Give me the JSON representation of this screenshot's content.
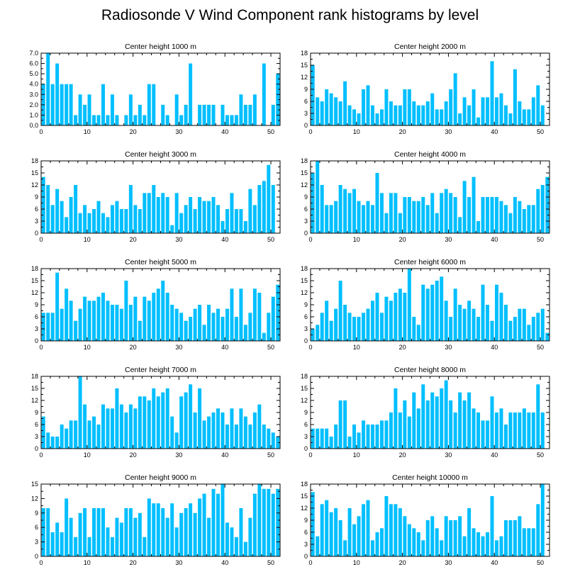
{
  "chart_data": {
    "type": "bar",
    "title": "Radiosonde V Wind Component rank histograms by level",
    "bar_color": "#00bfff",
    "x": [
      0,
      1,
      2,
      3,
      4,
      5,
      6,
      7,
      8,
      9,
      10,
      11,
      12,
      13,
      14,
      15,
      16,
      17,
      18,
      19,
      20,
      21,
      22,
      23,
      24,
      25,
      26,
      27,
      28,
      29,
      30,
      31,
      32,
      33,
      34,
      35,
      36,
      37,
      38,
      39,
      40,
      41,
      42,
      43,
      44,
      45,
      46,
      47,
      48,
      49,
      50,
      51
    ],
    "xlim": [
      0,
      52
    ],
    "xticks": [
      "0",
      "10",
      "20",
      "30",
      "40",
      "50"
    ],
    "panels": [
      {
        "title": "Center height 1000 m",
        "ylim": [
          0,
          7
        ],
        "yticks": [
          "0.0",
          "1.0",
          "2.0",
          "3.0",
          "4.0",
          "5.0",
          "6.0",
          "7.0"
        ],
        "values": [
          4,
          7,
          4,
          6,
          4,
          4,
          4,
          1,
          3,
          2,
          3,
          1,
          1,
          4,
          1,
          3,
          1,
          0,
          1,
          3,
          1,
          2,
          1,
          4,
          4,
          0,
          2,
          1,
          0,
          3,
          1,
          2,
          6,
          0,
          2,
          2,
          2,
          2,
          0,
          2,
          1,
          1,
          1,
          3,
          2,
          2,
          3,
          0,
          6,
          0,
          2,
          5
        ]
      },
      {
        "title": "Center height 2000 m",
        "ylim": [
          0,
          18
        ],
        "yticks": [
          "0",
          "3",
          "6",
          "9",
          "12",
          "15",
          "18"
        ],
        "values": [
          15,
          7,
          6,
          9,
          8,
          7,
          6,
          11,
          5,
          4,
          3,
          9,
          10,
          5,
          3,
          4,
          9,
          6,
          5,
          5,
          9,
          9,
          6,
          5,
          5,
          6,
          8,
          4,
          4,
          6,
          9,
          13,
          3,
          7,
          5,
          9,
          2,
          7,
          7,
          16,
          7,
          8,
          5,
          3,
          14,
          6,
          4,
          4,
          7,
          10,
          5,
          0
        ]
      },
      {
        "title": "Center height 3000 m",
        "ylim": [
          0,
          18
        ],
        "yticks": [
          "0",
          "3",
          "6",
          "9",
          "12",
          "15",
          "18"
        ],
        "values": [
          14,
          12,
          7,
          11,
          8,
          4,
          9,
          12,
          5,
          7,
          5,
          6,
          8,
          5,
          4,
          7,
          8,
          6,
          6,
          12,
          7,
          6,
          10,
          10,
          12,
          9,
          10,
          9,
          2,
          10,
          5,
          7,
          9,
          6,
          9,
          8,
          8,
          9,
          7,
          3,
          6,
          10,
          6,
          6,
          3,
          11,
          7,
          12,
          13,
          17,
          12,
          0
        ]
      },
      {
        "title": "Center height 4000 m",
        "ylim": [
          0,
          18
        ],
        "yticks": [
          "0",
          "3",
          "6",
          "9",
          "12",
          "15",
          "18"
        ],
        "values": [
          15,
          18,
          12,
          7,
          7,
          8,
          12,
          11,
          10,
          11,
          8,
          7,
          8,
          7,
          15,
          10,
          5,
          10,
          10,
          5,
          9,
          9,
          8,
          8,
          9,
          7,
          10,
          5,
          10,
          11,
          10,
          9,
          4,
          13,
          9,
          14,
          3,
          9,
          9,
          9,
          9,
          8,
          7,
          5,
          9,
          8,
          6,
          7,
          7,
          11,
          12,
          14
        ]
      },
      {
        "title": "Center height 5000 m",
        "ylim": [
          0,
          18
        ],
        "yticks": [
          "0",
          "3",
          "6",
          "9",
          "12",
          "15",
          "18"
        ],
        "values": [
          7,
          7,
          7,
          17,
          8,
          13,
          10,
          5,
          8,
          11,
          10,
          10,
          11,
          12,
          10,
          9,
          9,
          8,
          15,
          9,
          11,
          5,
          11,
          10,
          12,
          13,
          15,
          12,
          9,
          8,
          7,
          5,
          6,
          8,
          9,
          4,
          9,
          7,
          8,
          6,
          8,
          13,
          6,
          13,
          4,
          7,
          13,
          12,
          2,
          7,
          11,
          14
        ]
      },
      {
        "title": "Center height 6000 m",
        "ylim": [
          0,
          18
        ],
        "yticks": [
          "0",
          "3",
          "6",
          "9",
          "12",
          "15",
          "18"
        ],
        "values": [
          3,
          4,
          7,
          10,
          5,
          8,
          15,
          9,
          7,
          6,
          6,
          7,
          8,
          10,
          12,
          7,
          11,
          10,
          12,
          13,
          12,
          18,
          6,
          4,
          14,
          13,
          14,
          15,
          16,
          10,
          6,
          13,
          9,
          8,
          10,
          8,
          6,
          14,
          9,
          5,
          14,
          12,
          9,
          5,
          6,
          8,
          8,
          4,
          6,
          7,
          8,
          2
        ]
      },
      {
        "title": "Center height 7000 m",
        "ylim": [
          0,
          18
        ],
        "yticks": [
          "0",
          "3",
          "6",
          "9",
          "12",
          "15",
          "18"
        ],
        "values": [
          8,
          4,
          3,
          3,
          6,
          5,
          7,
          7,
          18,
          11,
          7,
          8,
          6,
          11,
          10,
          10,
          15,
          11,
          9,
          11,
          10,
          13,
          13,
          12,
          15,
          13,
          14,
          15,
          8,
          4,
          13,
          14,
          16,
          9,
          15,
          7,
          8,
          9,
          10,
          9,
          6,
          10,
          6,
          10,
          8,
          6,
          9,
          11,
          6,
          5,
          4,
          3
        ]
      },
      {
        "title": "Center height 8000 m",
        "ylim": [
          0,
          18
        ],
        "yticks": [
          "0",
          "3",
          "6",
          "9",
          "12",
          "15",
          "18"
        ],
        "values": [
          5,
          5,
          5,
          5,
          3,
          6,
          12,
          12,
          3,
          6,
          4,
          7,
          6,
          6,
          6,
          7,
          7,
          9,
          15,
          9,
          12,
          8,
          14,
          10,
          16,
          12,
          14,
          13,
          15,
          17,
          12,
          9,
          14,
          12,
          14,
          10,
          9,
          7,
          7,
          13,
          9,
          10,
          6,
          9,
          9,
          9,
          10,
          9,
          9,
          16,
          9,
          0
        ]
      },
      {
        "title": "Center height 9000 m",
        "ylim": [
          0,
          15
        ],
        "yticks": [
          "0",
          "3",
          "6",
          "9",
          "12",
          "15"
        ],
        "values": [
          10,
          10,
          5,
          7,
          5,
          12,
          8,
          4,
          9,
          10,
          4,
          10,
          10,
          10,
          6,
          4,
          8,
          7,
          10,
          10,
          8,
          9,
          4,
          12,
          11,
          11,
          10,
          8,
          11,
          6,
          9,
          10,
          11,
          9,
          12,
          13,
          8,
          14,
          13,
          15,
          7,
          6,
          4,
          10,
          3,
          8,
          13,
          15,
          14,
          14,
          13,
          14
        ]
      },
      {
        "title": "Center height 10000 m",
        "ylim": [
          0,
          18
        ],
        "yticks": [
          "0",
          "3",
          "6",
          "9",
          "12",
          "15",
          "18"
        ],
        "values": [
          16,
          5,
          13,
          14,
          11,
          12,
          9,
          4,
          12,
          8,
          10,
          13,
          14,
          4,
          6,
          7,
          15,
          13,
          13,
          12,
          10,
          8,
          7,
          6,
          4,
          9,
          10,
          7,
          4,
          10,
          9,
          9,
          10,
          5,
          12,
          7,
          6,
          5,
          6,
          15,
          4,
          5,
          9,
          9,
          9,
          10,
          7,
          7,
          7,
          13,
          18,
          0
        ]
      }
    ]
  }
}
